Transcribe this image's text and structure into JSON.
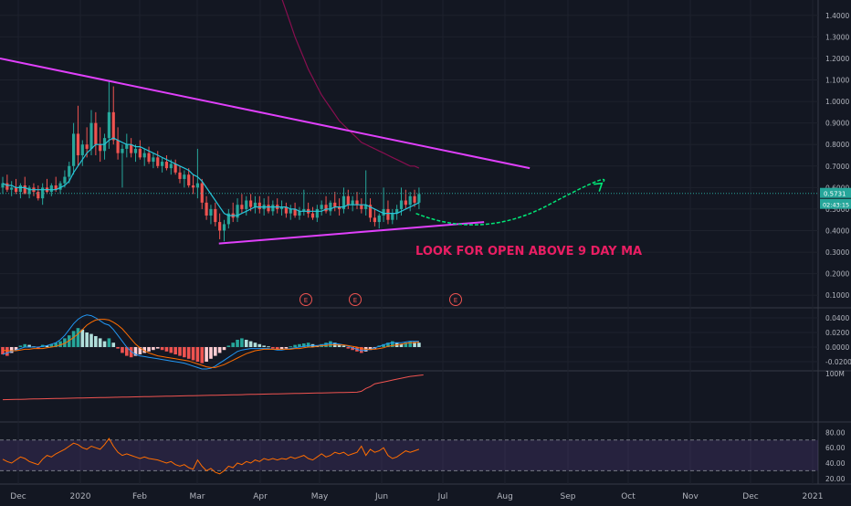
{
  "theme": {
    "background": "#131722",
    "grid": "#1e222d",
    "axis_text": "#b2b5be",
    "up": "#26a69a",
    "down": "#ef5350",
    "trendline": "#e040fb",
    "annotation": "#e91e63",
    "projection": "#00e676"
  },
  "annotation_text": "LOOK FOR OPEN ABOVE 9 DAY MA",
  "earnings_marker": "E",
  "price_badges": [
    "0.5731",
    "02:43:15"
  ],
  "chart_data": [
    {
      "type": "candlestick",
      "pane": "price",
      "y_ticks": [
        "1.4000",
        "1.3000",
        "1.2000",
        "1.1000",
        "1.0000",
        "0.9000",
        "0.8000",
        "0.7000",
        "0.6000",
        "0.5000",
        "0.4000",
        "0.3000",
        "0.2000",
        "0.1000"
      ],
      "ylim": [
        0.05,
        1.45
      ],
      "x_ticks": [
        "Dec",
        "2020",
        "Feb",
        "Mar",
        "Apr",
        "May",
        "Jun",
        "Jul",
        "Aug",
        "Sep",
        "Oct",
        "Nov",
        "Dec",
        "2021"
      ],
      "last_price": 0.5731,
      "candles": [
        [
          0.6,
          0.65,
          0.57,
          0.62
        ],
        [
          0.62,
          0.66,
          0.58,
          0.59
        ],
        [
          0.59,
          0.63,
          0.56,
          0.6
        ],
        [
          0.6,
          0.64,
          0.57,
          0.58
        ],
        [
          0.58,
          0.62,
          0.55,
          0.61
        ],
        [
          0.61,
          0.65,
          0.58,
          0.57
        ],
        [
          0.57,
          0.61,
          0.55,
          0.6
        ],
        [
          0.6,
          0.62,
          0.56,
          0.58
        ],
        [
          0.58,
          0.61,
          0.54,
          0.55
        ],
        [
          0.55,
          0.62,
          0.52,
          0.6
        ],
        [
          0.6,
          0.64,
          0.57,
          0.58
        ],
        [
          0.58,
          0.62,
          0.56,
          0.61
        ],
        [
          0.61,
          0.65,
          0.58,
          0.59
        ],
        [
          0.59,
          0.63,
          0.57,
          0.62
        ],
        [
          0.62,
          0.68,
          0.6,
          0.65
        ],
        [
          0.65,
          0.72,
          0.62,
          0.7
        ],
        [
          0.7,
          0.9,
          0.66,
          0.85
        ],
        [
          0.85,
          0.98,
          0.7,
          0.75
        ],
        [
          0.75,
          0.82,
          0.7,
          0.8
        ],
        [
          0.8,
          0.88,
          0.74,
          0.78
        ],
        [
          0.78,
          0.96,
          0.75,
          0.9
        ],
        [
          0.9,
          0.95,
          0.75,
          0.8
        ],
        [
          0.8,
          0.88,
          0.72,
          0.77
        ],
        [
          0.77,
          0.85,
          0.73,
          0.83
        ],
        [
          0.83,
          1.1,
          0.78,
          0.95
        ],
        [
          0.95,
          1.07,
          0.8,
          0.82
        ],
        [
          0.82,
          0.88,
          0.73,
          0.76
        ],
        [
          0.76,
          0.8,
          0.6,
          0.78
        ],
        [
          0.78,
          0.85,
          0.74,
          0.8
        ],
        [
          0.8,
          0.83,
          0.74,
          0.76
        ],
        [
          0.76,
          0.8,
          0.72,
          0.78
        ],
        [
          0.78,
          0.82,
          0.73,
          0.74
        ],
        [
          0.74,
          0.78,
          0.7,
          0.76
        ],
        [
          0.76,
          0.79,
          0.71,
          0.72
        ],
        [
          0.72,
          0.76,
          0.69,
          0.74
        ],
        [
          0.74,
          0.77,
          0.69,
          0.7
        ],
        [
          0.7,
          0.74,
          0.67,
          0.72
        ],
        [
          0.72,
          0.75,
          0.68,
          0.69
        ],
        [
          0.69,
          0.73,
          0.66,
          0.71
        ],
        [
          0.71,
          0.73,
          0.66,
          0.67
        ],
        [
          0.67,
          0.7,
          0.62,
          0.64
        ],
        [
          0.64,
          0.68,
          0.6,
          0.66
        ],
        [
          0.66,
          0.69,
          0.6,
          0.61
        ],
        [
          0.61,
          0.66,
          0.57,
          0.6
        ],
        [
          0.6,
          0.78,
          0.55,
          0.62
        ],
        [
          0.62,
          0.64,
          0.5,
          0.53
        ],
        [
          0.53,
          0.56,
          0.45,
          0.47
        ],
        [
          0.47,
          0.52,
          0.43,
          0.5
        ],
        [
          0.5,
          0.53,
          0.42,
          0.44
        ],
        [
          0.44,
          0.48,
          0.36,
          0.4
        ],
        [
          0.4,
          0.45,
          0.35,
          0.43
        ],
        [
          0.43,
          0.5,
          0.41,
          0.48
        ],
        [
          0.48,
          0.53,
          0.44,
          0.46
        ],
        [
          0.46,
          0.55,
          0.44,
          0.52
        ],
        [
          0.52,
          0.57,
          0.48,
          0.5
        ],
        [
          0.5,
          0.56,
          0.47,
          0.54
        ],
        [
          0.54,
          0.57,
          0.49,
          0.51
        ],
        [
          0.51,
          0.56,
          0.48,
          0.53
        ],
        [
          0.53,
          0.56,
          0.48,
          0.5
        ],
        [
          0.5,
          0.55,
          0.47,
          0.52
        ],
        [
          0.52,
          0.56,
          0.48,
          0.49
        ],
        [
          0.49,
          0.54,
          0.47,
          0.52
        ],
        [
          0.52,
          0.55,
          0.48,
          0.5
        ],
        [
          0.5,
          0.54,
          0.47,
          0.51
        ],
        [
          0.51,
          0.53,
          0.46,
          0.48
        ],
        [
          0.48,
          0.52,
          0.45,
          0.5
        ],
        [
          0.5,
          0.53,
          0.46,
          0.47
        ],
        [
          0.47,
          0.51,
          0.45,
          0.49
        ],
        [
          0.49,
          0.59,
          0.47,
          0.5
        ],
        [
          0.5,
          0.53,
          0.46,
          0.48
        ],
        [
          0.48,
          0.51,
          0.45,
          0.46
        ],
        [
          0.46,
          0.52,
          0.44,
          0.5
        ],
        [
          0.5,
          0.54,
          0.47,
          0.52
        ],
        [
          0.52,
          0.56,
          0.48,
          0.49
        ],
        [
          0.49,
          0.54,
          0.47,
          0.53
        ],
        [
          0.53,
          0.58,
          0.49,
          0.51
        ],
        [
          0.51,
          0.55,
          0.47,
          0.5
        ],
        [
          0.5,
          0.6,
          0.48,
          0.56
        ],
        [
          0.56,
          0.59,
          0.5,
          0.52
        ],
        [
          0.52,
          0.56,
          0.49,
          0.54
        ],
        [
          0.54,
          0.58,
          0.5,
          0.52
        ],
        [
          0.52,
          0.55,
          0.48,
          0.5
        ],
        [
          0.5,
          0.68,
          0.47,
          0.52
        ],
        [
          0.52,
          0.55,
          0.44,
          0.46
        ],
        [
          0.46,
          0.5,
          0.42,
          0.44
        ],
        [
          0.44,
          0.48,
          0.41,
          0.47
        ],
        [
          0.47,
          0.6,
          0.44,
          0.5
        ],
        [
          0.5,
          0.54,
          0.43,
          0.45
        ],
        [
          0.45,
          0.5,
          0.43,
          0.48
        ],
        [
          0.48,
          0.52,
          0.45,
          0.5
        ],
        [
          0.5,
          0.6,
          0.47,
          0.54
        ],
        [
          0.54,
          0.59,
          0.5,
          0.52
        ],
        [
          0.52,
          0.58,
          0.49,
          0.56
        ],
        [
          0.56,
          0.59,
          0.51,
          0.53
        ],
        [
          0.53,
          0.6,
          0.5,
          0.57
        ]
      ],
      "ma_fast": [
        0.62,
        0.61,
        0.61,
        0.6,
        0.6,
        0.6,
        0.59,
        0.59,
        0.59,
        0.59,
        0.59,
        0.59,
        0.59,
        0.6,
        0.61,
        0.63,
        0.67,
        0.7,
        0.73,
        0.76,
        0.78,
        0.8,
        0.8,
        0.8,
        0.82,
        0.83,
        0.82,
        0.81,
        0.8,
        0.8,
        0.79,
        0.79,
        0.78,
        0.77,
        0.76,
        0.75,
        0.74,
        0.73,
        0.72,
        0.71,
        0.7,
        0.69,
        0.68,
        0.66,
        0.65,
        0.63,
        0.6,
        0.57,
        0.54,
        0.51,
        0.48,
        0.47,
        0.47,
        0.47,
        0.48,
        0.49,
        0.5,
        0.51,
        0.51,
        0.51,
        0.51,
        0.51,
        0.51,
        0.51,
        0.51,
        0.5,
        0.5,
        0.49,
        0.49,
        0.49,
        0.49,
        0.49,
        0.49,
        0.5,
        0.5,
        0.51,
        0.51,
        0.51,
        0.52,
        0.52,
        0.52,
        0.52,
        0.52,
        0.51,
        0.5,
        0.49,
        0.48,
        0.48,
        0.48,
        0.48,
        0.49,
        0.5,
        0.51,
        0.52,
        0.53
      ],
      "ma_slow": [
        1.7,
        1.62,
        1.55,
        1.48,
        1.42,
        1.36,
        1.3,
        1.25,
        1.2,
        1.15,
        1.11,
        1.07,
        1.03,
        1.0,
        0.97,
        0.94,
        0.91,
        0.89,
        0.87,
        0.85,
        0.83,
        0.81,
        0.8,
        0.79,
        0.78,
        0.77,
        0.76,
        0.75,
        0.74,
        0.73,
        0.72,
        0.71,
        0.7,
        0.7,
        0.69
      ],
      "ma_slow_start_index": 60,
      "trendline_upper": [
        [
          0,
          1.2
        ],
        [
          119,
          0.69
        ]
      ],
      "trendline_lower": [
        [
          55,
          0.34
        ],
        [
          119,
          0.44
        ]
      ],
      "projection": [
        [
          103,
          0.48
        ],
        [
          118,
          0.45
        ],
        [
          133,
          0.52
        ],
        [
          145,
          0.62
        ]
      ],
      "earnings_x": [
        76,
        89,
        114
      ]
    },
    {
      "type": "histogram+line",
      "pane": "macd",
      "y_ticks": [
        "0.0400",
        "0.0200",
        "0.0000",
        "-0.0200"
      ],
      "ylim": [
        -0.03,
        0.05
      ],
      "histogram": [
        -0.01,
        -0.012,
        -0.008,
        -0.004,
        0.002,
        0.004,
        0.003,
        0.001,
        -0.002,
        0.003,
        0.002,
        0.004,
        0.006,
        0.008,
        0.012,
        0.016,
        0.022,
        0.026,
        0.024,
        0.02,
        0.018,
        0.015,
        0.012,
        0.008,
        0.012,
        0.006,
        -0.002,
        -0.008,
        -0.012,
        -0.014,
        -0.012,
        -0.01,
        -0.008,
        -0.006,
        -0.004,
        -0.002,
        -0.004,
        -0.006,
        -0.008,
        -0.01,
        -0.012,
        -0.014,
        -0.016,
        -0.018,
        -0.02,
        -0.022,
        -0.02,
        -0.016,
        -0.012,
        -0.008,
        -0.004,
        0.002,
        0.006,
        0.01,
        0.012,
        0.01,
        0.008,
        0.006,
        0.004,
        0.002,
        0.001,
        -0.002,
        -0.004,
        -0.003,
        -0.002,
        0.001,
        0.003,
        0.004,
        0.005,
        0.006,
        0.004,
        0.002,
        0.004,
        0.006,
        0.008,
        0.006,
        0.004,
        0.002,
        -0.002,
        -0.004,
        -0.006,
        -0.008,
        -0.006,
        -0.004,
        -0.002,
        0.002,
        0.004,
        0.006,
        0.008,
        0.006,
        0.004,
        0.006,
        0.008,
        0.007,
        0.006
      ],
      "macd_line": [
        -0.01,
        -0.008,
        -0.006,
        -0.004,
        -0.002,
        0.0,
        0.0,
        0.0,
        0.0,
        0.001,
        0.002,
        0.004,
        0.006,
        0.01,
        0.016,
        0.024,
        0.032,
        0.038,
        0.042,
        0.044,
        0.043,
        0.04,
        0.036,
        0.032,
        0.03,
        0.024,
        0.016,
        0.008,
        0.0,
        -0.006,
        -0.01,
        -0.012,
        -0.013,
        -0.014,
        -0.015,
        -0.016,
        -0.017,
        -0.018,
        -0.019,
        -0.02,
        -0.021,
        -0.022,
        -0.024,
        -0.026,
        -0.028,
        -0.03,
        -0.03,
        -0.029,
        -0.026,
        -0.022,
        -0.018,
        -0.014,
        -0.01,
        -0.006,
        -0.004,
        -0.003,
        -0.002,
        -0.002,
        -0.002,
        -0.002,
        -0.002,
        -0.003,
        -0.004,
        -0.004,
        -0.003,
        -0.002,
        -0.001,
        0.0,
        0.001,
        0.002,
        0.002,
        0.002,
        0.003,
        0.004,
        0.005,
        0.005,
        0.004,
        0.003,
        0.001,
        -0.001,
        -0.003,
        -0.005,
        -0.004,
        -0.003,
        -0.001,
        0.001,
        0.003,
        0.005,
        0.006,
        0.006,
        0.006,
        0.007,
        0.008,
        0.008,
        0.008
      ],
      "signal_line": [
        -0.004,
        -0.005,
        -0.005,
        -0.005,
        -0.004,
        -0.003,
        -0.003,
        -0.002,
        -0.002,
        -0.002,
        -0.001,
        0.0,
        0.001,
        0.003,
        0.005,
        0.009,
        0.013,
        0.018,
        0.024,
        0.03,
        0.034,
        0.037,
        0.038,
        0.038,
        0.037,
        0.034,
        0.03,
        0.025,
        0.018,
        0.011,
        0.004,
        -0.001,
        -0.005,
        -0.008,
        -0.01,
        -0.012,
        -0.013,
        -0.014,
        -0.015,
        -0.016,
        -0.017,
        -0.018,
        -0.019,
        -0.021,
        -0.023,
        -0.025,
        -0.027,
        -0.028,
        -0.028,
        -0.026,
        -0.024,
        -0.021,
        -0.018,
        -0.015,
        -0.012,
        -0.009,
        -0.007,
        -0.005,
        -0.004,
        -0.003,
        -0.003,
        -0.003,
        -0.003,
        -0.003,
        -0.003,
        -0.003,
        -0.002,
        -0.002,
        -0.001,
        0.0,
        0.0,
        0.001,
        0.002,
        0.002,
        0.003,
        0.003,
        0.003,
        0.003,
        0.002,
        0.001,
        0.0,
        -0.002,
        -0.003,
        -0.003,
        -0.003,
        -0.002,
        -0.001,
        0.001,
        0.002,
        0.003,
        0.004,
        0.005,
        0.006,
        0.006,
        0.007
      ]
    },
    {
      "type": "line",
      "pane": "volume",
      "y_ticks": [
        "100M"
      ],
      "ylim": [
        0,
        100
      ],
      "values_start": 44,
      "values_end": 60,
      "jump_index": 80,
      "values_after_jump": [
        62,
        68,
        72,
        78,
        80,
        82,
        84,
        86,
        88,
        90,
        92,
        94,
        95,
        96,
        97
      ]
    },
    {
      "type": "line",
      "pane": "rsi",
      "y_ticks": [
        "80.00",
        "60.00",
        "40.00",
        "20.00"
      ],
      "ylim": [
        15,
        90
      ],
      "band": [
        30,
        70
      ],
      "values": [
        45,
        42,
        40,
        44,
        48,
        46,
        42,
        40,
        38,
        45,
        50,
        48,
        52,
        55,
        58,
        62,
        66,
        64,
        60,
        58,
        62,
        60,
        58,
        64,
        72,
        62,
        54,
        50,
        52,
        50,
        48,
        46,
        48,
        46,
        45,
        44,
        42,
        40,
        42,
        38,
        36,
        38,
        34,
        32,
        44,
        36,
        30,
        33,
        28,
        26,
        30,
        36,
        34,
        40,
        38,
        42,
        40,
        44,
        42,
        46,
        44,
        46,
        44,
        46,
        45,
        48,
        46,
        48,
        50,
        46,
        44,
        48,
        52,
        48,
        50,
        54,
        52,
        54,
        50,
        52,
        54,
        62,
        50,
        58,
        54,
        56,
        60,
        50,
        46,
        48,
        52,
        56,
        54,
        56,
        58
      ]
    }
  ]
}
